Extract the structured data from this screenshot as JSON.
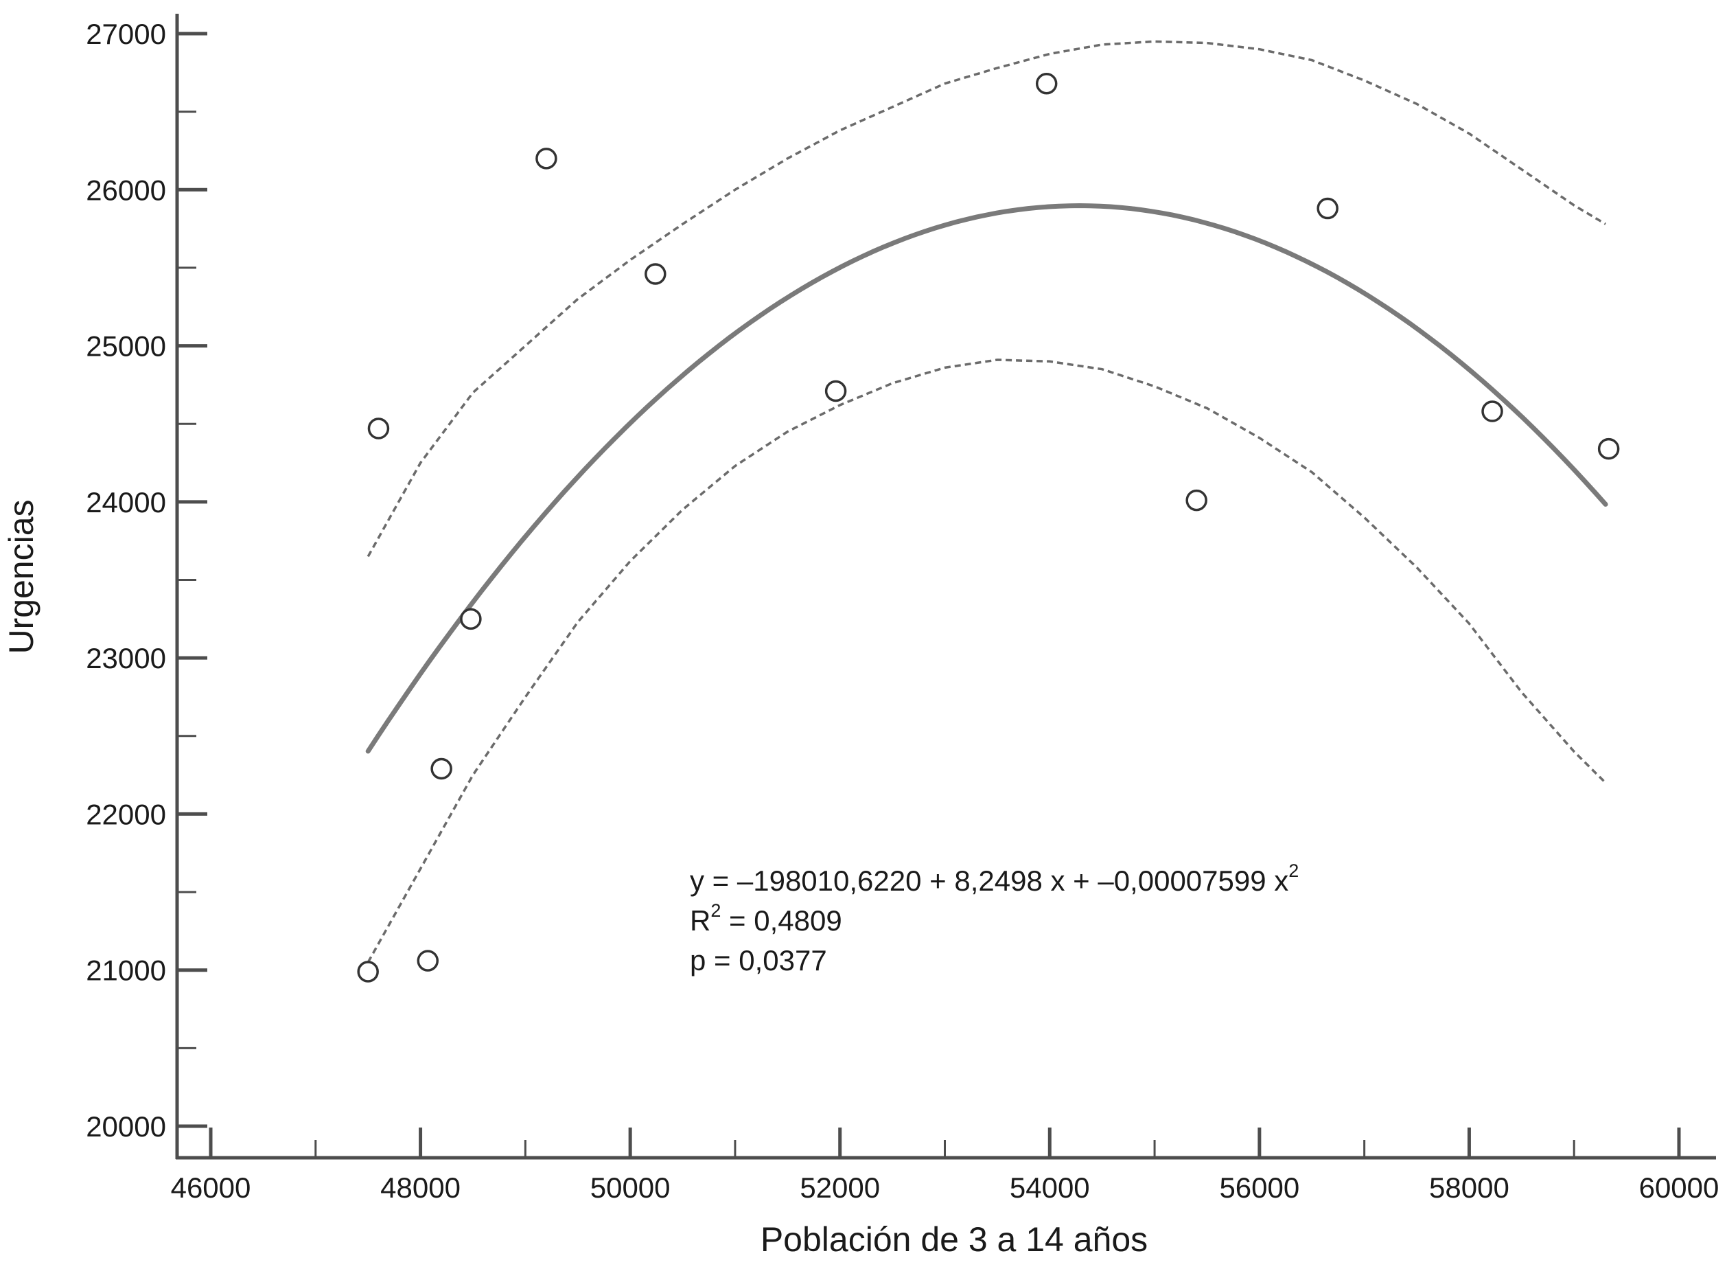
{
  "chart_data": {
    "type": "scatter",
    "xlabel": "Población de 3 a 14 años",
    "ylabel": "Urgencias",
    "xlim": [
      46000,
      60000
    ],
    "ylim": [
      20000,
      27000
    ],
    "x_ticks": [
      46000,
      48000,
      50000,
      52000,
      54000,
      56000,
      58000,
      60000
    ],
    "x_ticks_minor": [
      47000,
      49000,
      51000,
      53000,
      55000,
      57000,
      59000
    ],
    "y_ticks": [
      20000,
      21000,
      22000,
      23000,
      24000,
      25000,
      26000,
      27000
    ],
    "y_ticks_minor": [
      20500,
      21500,
      22500,
      23500,
      24500,
      25500,
      26500
    ],
    "grid": false,
    "points": [
      {
        "x": 47500,
        "y": 20990
      },
      {
        "x": 47600,
        "y": 24470
      },
      {
        "x": 48070,
        "y": 21060
      },
      {
        "x": 48200,
        "y": 22290
      },
      {
        "x": 48480,
        "y": 23250
      },
      {
        "x": 49200,
        "y": 26200
      },
      {
        "x": 50240,
        "y": 25460
      },
      {
        "x": 51960,
        "y": 24710
      },
      {
        "x": 53970,
        "y": 26680
      },
      {
        "x": 55400,
        "y": 24010
      },
      {
        "x": 56650,
        "y": 25880
      },
      {
        "x": 58220,
        "y": 24580
      },
      {
        "x": 59330,
        "y": 24340
      }
    ],
    "fit": {
      "type": "quadratic",
      "coefficients": [
        -198010.622,
        8.2498,
        -7.599e-05
      ],
      "x_range": [
        47500,
        59300
      ],
      "style": "solid"
    },
    "confidence_bands": [
      {
        "style": "dashed",
        "points": [
          {
            "x": 47500,
            "y": 23650
          },
          {
            "x": 48000,
            "y": 24250
          },
          {
            "x": 48500,
            "y": 24700
          },
          {
            "x": 49000,
            "y": 25000
          },
          {
            "x": 49500,
            "y": 25300
          },
          {
            "x": 50000,
            "y": 25550
          },
          {
            "x": 50500,
            "y": 25780
          },
          {
            "x": 51000,
            "y": 26000
          },
          {
            "x": 51500,
            "y": 26200
          },
          {
            "x": 52000,
            "y": 26380
          },
          {
            "x": 52500,
            "y": 26530
          },
          {
            "x": 53000,
            "y": 26680
          },
          {
            "x": 53500,
            "y": 26780
          },
          {
            "x": 54000,
            "y": 26870
          },
          {
            "x": 54500,
            "y": 26930
          },
          {
            "x": 55000,
            "y": 26950
          },
          {
            "x": 55500,
            "y": 26940
          },
          {
            "x": 56000,
            "y": 26900
          },
          {
            "x": 56500,
            "y": 26830
          },
          {
            "x": 57000,
            "y": 26700
          },
          {
            "x": 57500,
            "y": 26550
          },
          {
            "x": 58000,
            "y": 26360
          },
          {
            "x": 58500,
            "y": 26130
          },
          {
            "x": 59000,
            "y": 25900
          },
          {
            "x": 59300,
            "y": 25780
          }
        ]
      },
      {
        "style": "dashed",
        "points": [
          {
            "x": 47500,
            "y": 21050
          },
          {
            "x": 48000,
            "y": 21650
          },
          {
            "x": 48500,
            "y": 22250
          },
          {
            "x": 49000,
            "y": 22750
          },
          {
            "x": 49500,
            "y": 23230
          },
          {
            "x": 50000,
            "y": 23620
          },
          {
            "x": 50500,
            "y": 23950
          },
          {
            "x": 51000,
            "y": 24230
          },
          {
            "x": 51500,
            "y": 24450
          },
          {
            "x": 52000,
            "y": 24620
          },
          {
            "x": 52500,
            "y": 24760
          },
          {
            "x": 53000,
            "y": 24860
          },
          {
            "x": 53500,
            "y": 24910
          },
          {
            "x": 54000,
            "y": 24900
          },
          {
            "x": 54500,
            "y": 24850
          },
          {
            "x": 55000,
            "y": 24740
          },
          {
            "x": 55500,
            "y": 24600
          },
          {
            "x": 56000,
            "y": 24410
          },
          {
            "x": 56500,
            "y": 24190
          },
          {
            "x": 57000,
            "y": 23900
          },
          {
            "x": 57500,
            "y": 23580
          },
          {
            "x": 58000,
            "y": 23220
          },
          {
            "x": 58500,
            "y": 22780
          },
          {
            "x": 59000,
            "y": 22400
          },
          {
            "x": 59300,
            "y": 22200
          }
        ]
      }
    ],
    "annotation": {
      "line1_main": "y = –198010,6220 + 8,2498 x + –0,00007599 x",
      "line1_sup": "2",
      "line2_pre": "R",
      "line2_sup": "2",
      "line2_post": " = 0,4809",
      "line3": "p = 0,0377"
    }
  }
}
